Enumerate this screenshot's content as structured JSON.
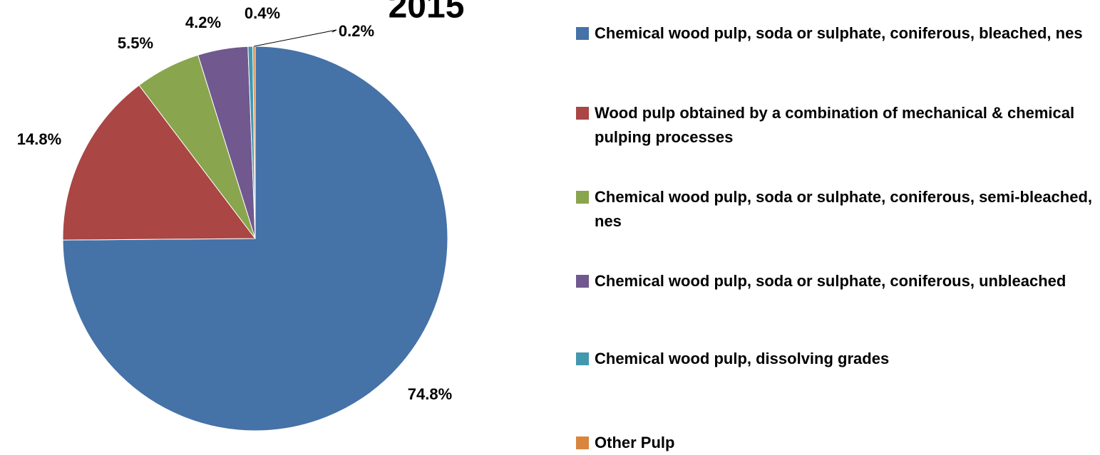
{
  "chart_data": {
    "type": "pie",
    "title": "2015",
    "categories": [
      "Chemical wood pulp, soda or sulphate, coniferous, bleached, nes",
      "Wood pulp obtained by a combination of mechanical & chemical pulping processes",
      "Chemical wood pulp, soda or sulphate, coniferous, semi-bleached, nes",
      "Chemical wood pulp, soda or sulphate, coniferous, unbleached",
      "Chemical wood pulp, dissolving grades",
      "Other Pulp"
    ],
    "values": [
      74.8,
      14.8,
      5.5,
      4.2,
      0.4,
      0.2
    ],
    "value_labels": [
      "74.8%",
      "14.8%",
      "5.5%",
      "4.2%",
      "0.4%",
      "0.2%"
    ],
    "colors": [
      "#4572a7",
      "#aa4643",
      "#89a54e",
      "#71588f",
      "#4198af",
      "#db843d"
    ],
    "legend": "right"
  }
}
